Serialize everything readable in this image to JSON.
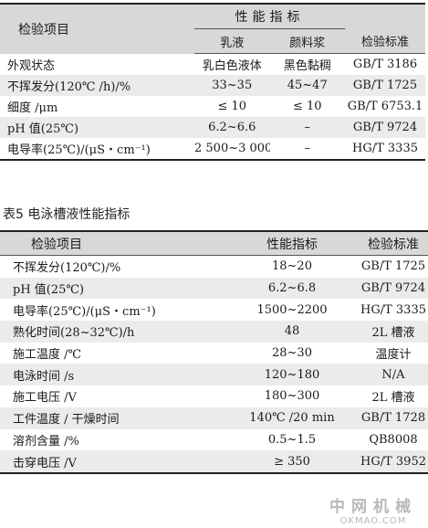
{
  "table1": {
    "header": {
      "item": "检验项目",
      "performance": "性能指标",
      "emulsion": "乳液",
      "pigment_paste": "颜料浆",
      "standard": "检验标准"
    },
    "rows": [
      {
        "item": "外观状态",
        "emulsion": "乳白色液体",
        "paste": "黑色黏稠",
        "standard": "GB/T 3186"
      },
      {
        "item": "不挥发分(120℃ /h)/%",
        "emulsion": "33~35",
        "paste": "45~47",
        "standard": "GB/T 1725"
      },
      {
        "item": "细度 /μm",
        "emulsion": "≤ 10",
        "paste": "≤ 10",
        "standard": "GB/T 6753.1"
      },
      {
        "item": "pH 值(25℃)",
        "emulsion": "6.2~6.6",
        "paste": "–",
        "standard": "GB/T 9724"
      },
      {
        "item": "电导率(25℃)/(μS・cm⁻¹)",
        "emulsion": "2 500~3 000",
        "paste": "–",
        "standard": "HG/T 3335"
      }
    ]
  },
  "caption": "表5 电泳槽液性能指标",
  "table2": {
    "header": {
      "item": "检验项目",
      "performance": "性能指标",
      "standard": "检验标准"
    },
    "rows": [
      {
        "item": "不挥发分(120℃)/%",
        "value": "18~20",
        "standard": "GB/T 1725"
      },
      {
        "item": "pH 值(25℃)",
        "value": "6.2~6.8",
        "standard": "GB/T 9724"
      },
      {
        "item": "电导率(25℃)/(μS・cm⁻¹)",
        "value": "1500~2200",
        "standard": "HG/T 3335"
      },
      {
        "item": "熟化时间(28~32℃)/h",
        "value": "48",
        "standard": "2L 槽液"
      },
      {
        "item": "施工温度 /℃",
        "value": "28~30",
        "standard": "温度计"
      },
      {
        "item": "电泳时间 /s",
        "value": "120~180",
        "standard": "N/A"
      },
      {
        "item": "施工电压 /V",
        "value": "180~300",
        "standard": "2L 槽液"
      },
      {
        "item": "工件温度 / 干燥时间",
        "value": "140℃ /20 min",
        "standard": "GB/T 1728"
      },
      {
        "item": "溶剂含量 /%",
        "value": "0.5~1.5",
        "standard": "QB8008"
      },
      {
        "item": "击穿电压 /V",
        "value": "≥ 350",
        "standard": "HG/T 3952"
      }
    ]
  },
  "watermark": {
    "cn": "中网机械",
    "en": "OKMAO.COM"
  },
  "colors": {
    "header_bg": "#d8d8d8",
    "alt_row_bg": "#ebebeb",
    "watermark": "#b9b9b9"
  }
}
